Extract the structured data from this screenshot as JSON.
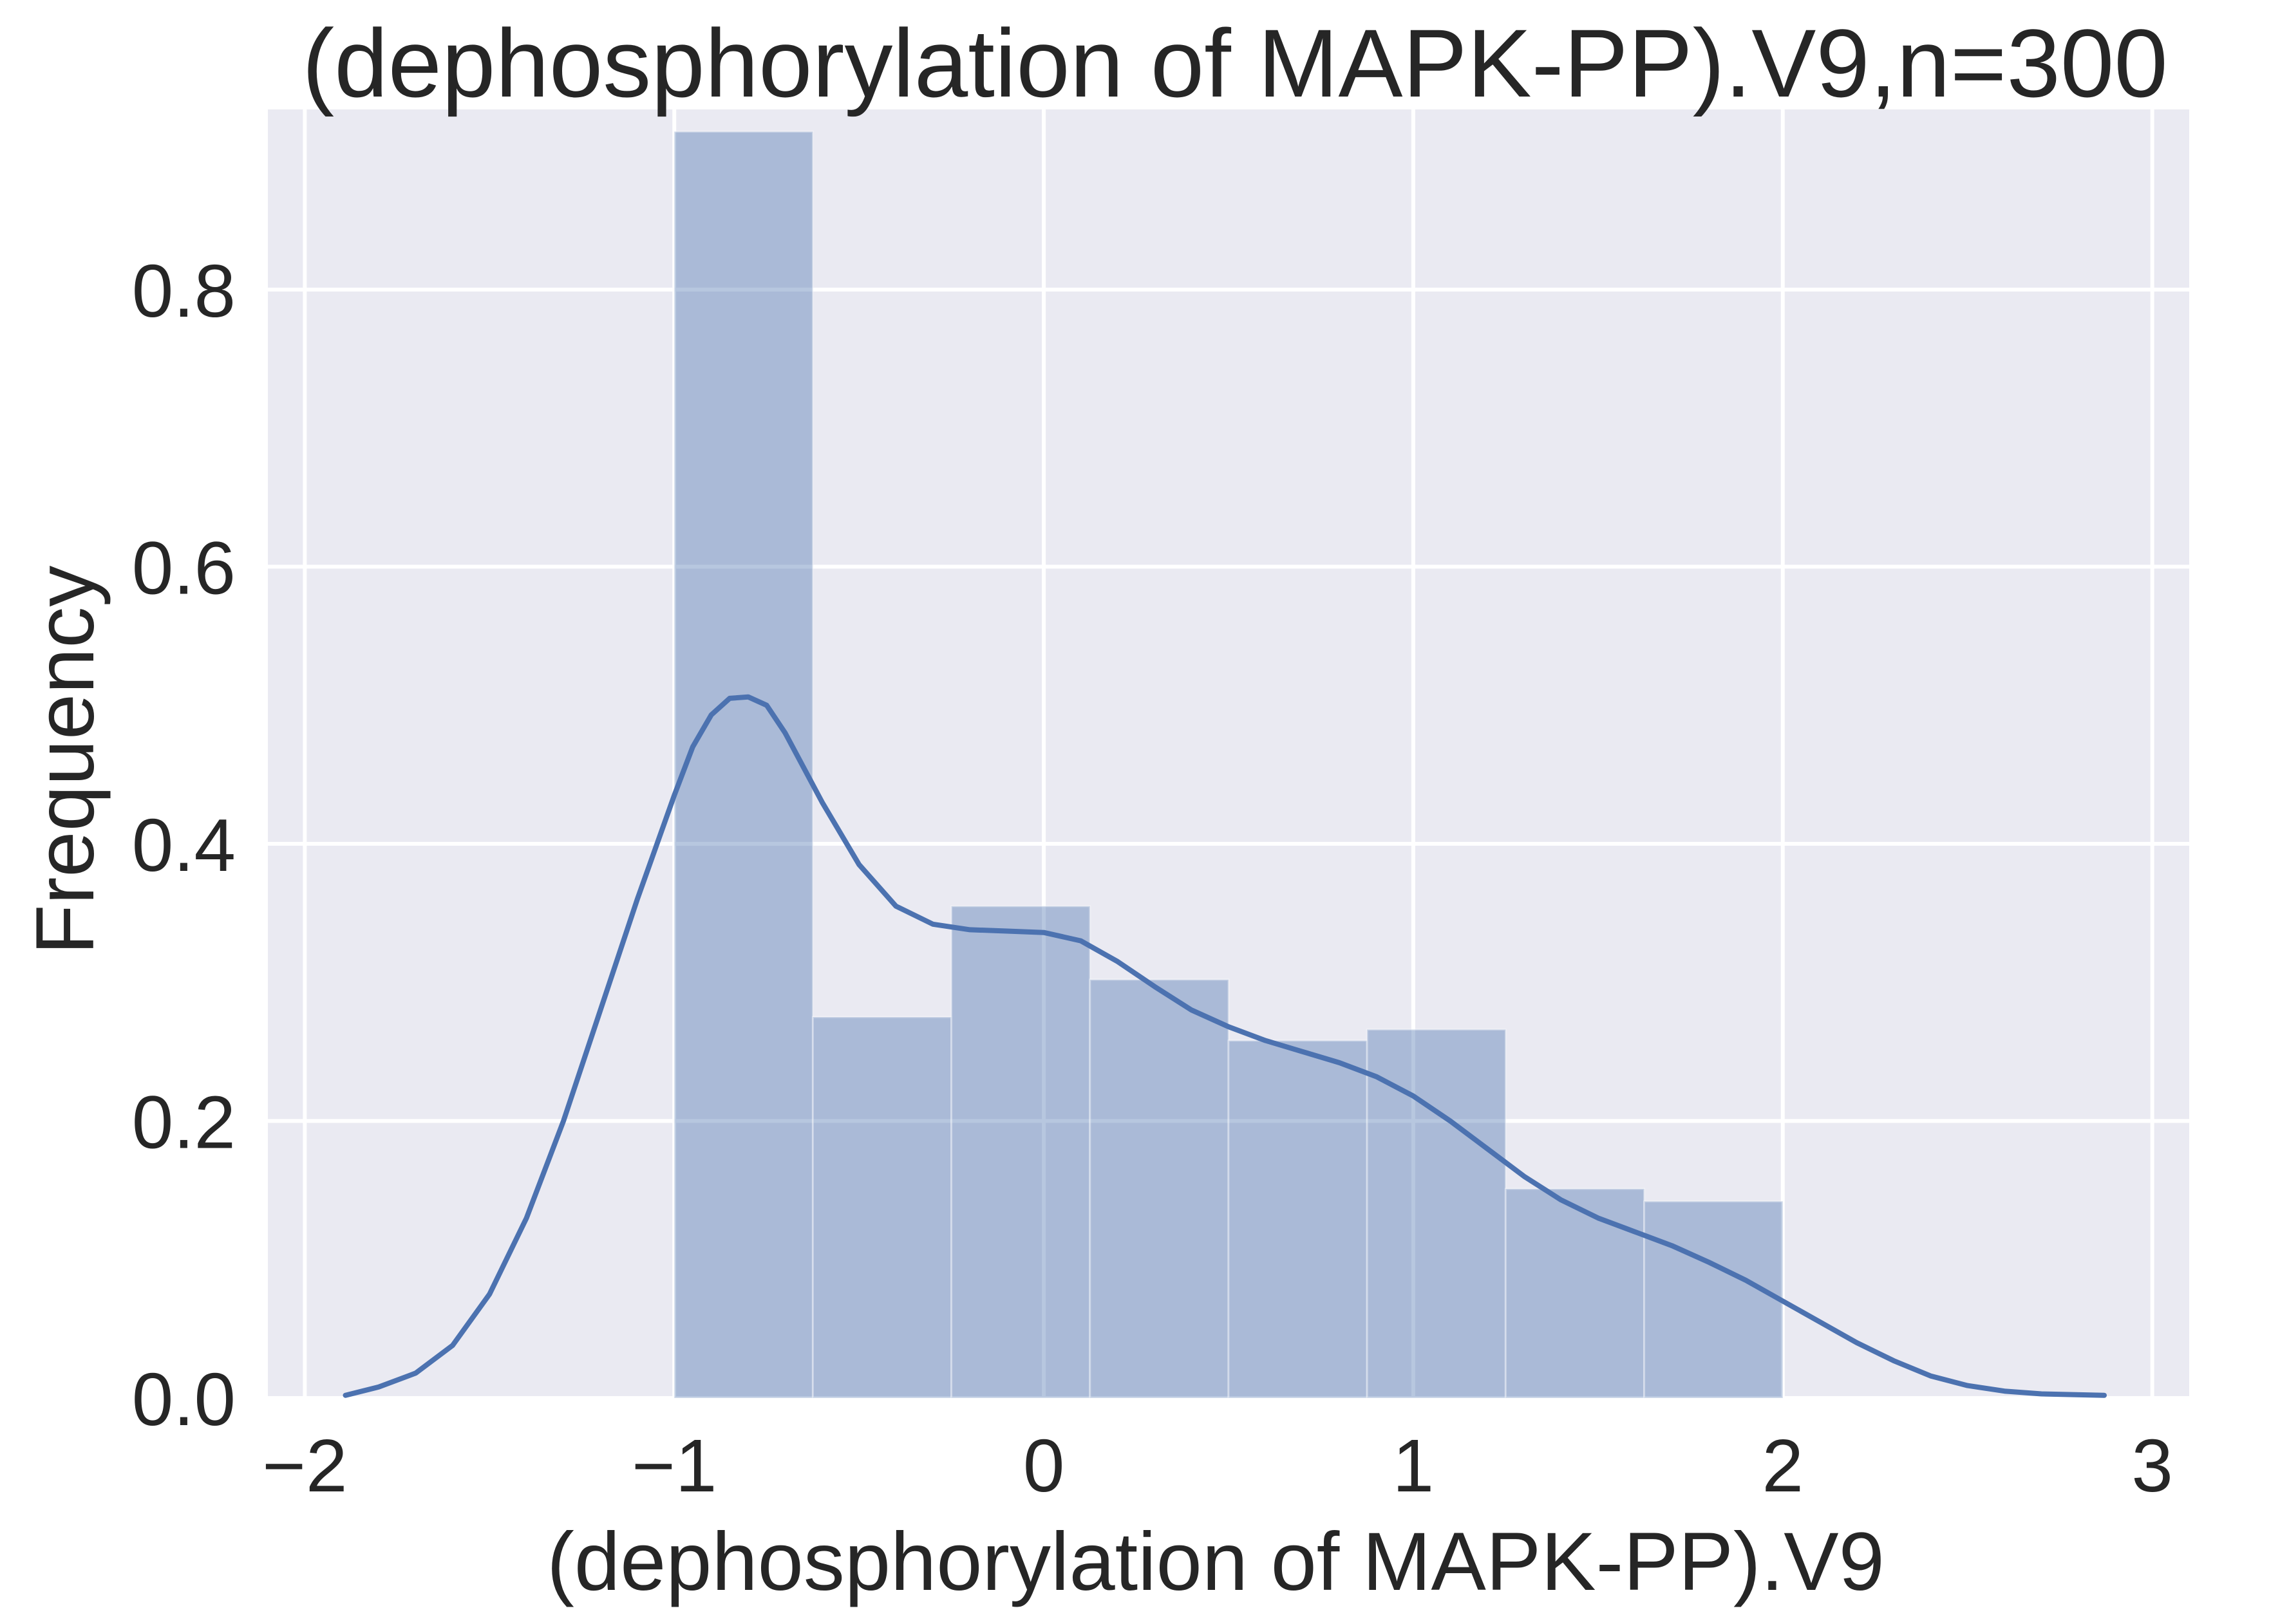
{
  "chart_data": {
    "type": "histogram",
    "title": "(dephosphorylation of MAPK-PP).V9,n=300",
    "xlabel": "(dephosphorylation of MAPK-PP).V9",
    "ylabel": "Frequency",
    "xlim": [
      -2.1,
      3.1
    ],
    "ylim": [
      0,
      0.93
    ],
    "grid": true,
    "background": "#EAEAF2",
    "x_ticks": [
      -2,
      -1,
      0,
      1,
      2,
      3
    ],
    "x_tick_labels": [
      "−2",
      "−1",
      "0",
      "1",
      "2",
      "3"
    ],
    "y_ticks": [
      0.0,
      0.2,
      0.4,
      0.6,
      0.8
    ],
    "y_tick_labels": [
      "0.0",
      "0.2",
      "0.4",
      "0.6",
      "0.8"
    ],
    "bins": [
      {
        "x0": -1.0,
        "x1": -0.625,
        "value": 0.914
      },
      {
        "x0": -0.625,
        "x1": -0.25,
        "value": 0.275
      },
      {
        "x0": -0.25,
        "x1": 0.125,
        "value": 0.355
      },
      {
        "x0": 0.125,
        "x1": 0.5,
        "value": 0.302
      },
      {
        "x0": 0.5,
        "x1": 0.875,
        "value": 0.258
      },
      {
        "x0": 0.875,
        "x1": 1.25,
        "value": 0.266
      },
      {
        "x0": 1.25,
        "x1": 1.625,
        "value": 0.151
      },
      {
        "x0": 1.625,
        "x1": 2.0,
        "value": 0.142
      }
    ],
    "bar_color": "#4C72B0",
    "bar_opacity": 0.4,
    "kde": {
      "color": "#4C72B0",
      "x": [
        -1.89,
        -1.8,
        -1.7,
        -1.6,
        -1.5,
        -1.4,
        -1.3,
        -1.2,
        -1.1,
        -1.0,
        -0.95,
        -0.9,
        -0.85,
        -0.8,
        -0.75,
        -0.7,
        -0.6,
        -0.5,
        -0.4,
        -0.3,
        -0.2,
        -0.1,
        0.0,
        0.1,
        0.2,
        0.3,
        0.4,
        0.5,
        0.6,
        0.7,
        0.8,
        0.9,
        1.0,
        1.1,
        1.2,
        1.3,
        1.4,
        1.5,
        1.6,
        1.7,
        1.8,
        1.9,
        2.0,
        2.1,
        2.2,
        2.3,
        2.4,
        2.5,
        2.6,
        2.7,
        2.87
      ],
      "y": [
        0.002,
        0.008,
        0.018,
        0.038,
        0.075,
        0.13,
        0.2,
        0.28,
        0.36,
        0.435,
        0.47,
        0.493,
        0.505,
        0.506,
        0.5,
        0.48,
        0.43,
        0.385,
        0.355,
        0.342,
        0.338,
        0.337,
        0.336,
        0.33,
        0.315,
        0.297,
        0.28,
        0.268,
        0.258,
        0.25,
        0.242,
        0.232,
        0.218,
        0.2,
        0.18,
        0.16,
        0.143,
        0.13,
        0.12,
        0.11,
        0.098,
        0.085,
        0.07,
        0.055,
        0.04,
        0.027,
        0.016,
        0.009,
        0.005,
        0.003,
        0.002
      ]
    }
  }
}
